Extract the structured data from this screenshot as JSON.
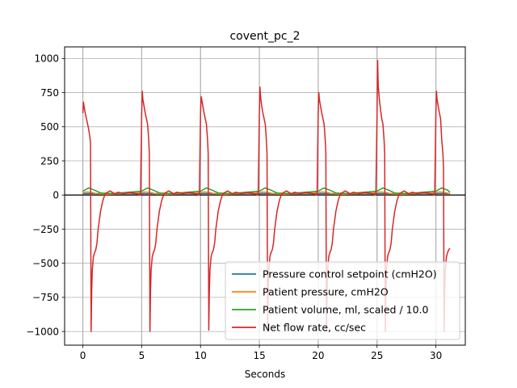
{
  "chart_data": {
    "type": "line",
    "title": "covent_pc_2",
    "xlabel": "Seconds",
    "ylabel": "",
    "xlim": [
      -1.55,
      32.5
    ],
    "ylim": [
      -1100,
      1085
    ],
    "xticks": [
      0,
      5,
      10,
      15,
      20,
      25,
      30
    ],
    "yticks": [
      -1000,
      -750,
      -500,
      -250,
      0,
      250,
      500,
      750,
      1000
    ],
    "xtick_labels": [
      "0",
      "5",
      "10",
      "15",
      "20",
      "25",
      "30"
    ],
    "ytick_labels": [
      "−1000",
      "−750",
      "−500",
      "−250",
      "0",
      "250",
      "500",
      "750",
      "1000"
    ],
    "grid": true,
    "zero_line": true,
    "legend_position": "lower-right",
    "breath_starts": [
      0.0,
      5.0,
      10.0,
      15.0,
      20.0,
      25.0,
      30.0
    ],
    "series": [
      {
        "name": "Pressure control setpoint (cmH2O)",
        "color": "#1f77b4",
        "x": [
          0,
          31.2
        ],
        "y": [
          10,
          10
        ]
      },
      {
        "name": "Patient pressure, cmH2O",
        "color": "#ff7f0e",
        "x": [
          0,
          0.3,
          0.8,
          1.2,
          2.2,
          5.0,
          5.3,
          5.8,
          6.2,
          7.2,
          10.0,
          10.3,
          10.8,
          11.2,
          12.2,
          15.0,
          15.3,
          15.8,
          16.2,
          17.2,
          20.0,
          20.3,
          20.8,
          21.2,
          22.2,
          25.0,
          25.3,
          25.8,
          26.2,
          27.2,
          30.0,
          30.3,
          30.8,
          31.2
        ],
        "y": [
          18,
          22,
          18,
          8,
          5,
          18,
          22,
          18,
          8,
          5,
          18,
          22,
          18,
          8,
          5,
          18,
          22,
          18,
          8,
          5,
          18,
          22,
          18,
          8,
          5,
          18,
          22,
          18,
          8,
          5,
          18,
          22,
          18,
          8
        ]
      },
      {
        "name": "Patient volume, ml, scaled / 10.0",
        "color": "#2ca02c",
        "x": [
          0,
          0.5,
          1.0,
          1.5,
          2.5,
          5.0,
          5.5,
          6.0,
          6.5,
          7.5,
          10.0,
          10.5,
          11.0,
          11.5,
          12.5,
          15.0,
          15.5,
          16.0,
          16.5,
          17.5,
          20.0,
          20.5,
          21.0,
          21.5,
          22.5,
          25.0,
          25.5,
          26.0,
          26.5,
          27.5,
          30.0,
          30.5,
          31.0,
          31.2
        ],
        "y": [
          28,
          52,
          35,
          15,
          10,
          28,
          52,
          35,
          15,
          10,
          28,
          52,
          35,
          15,
          10,
          28,
          52,
          35,
          15,
          10,
          28,
          52,
          35,
          15,
          10,
          28,
          52,
          35,
          15,
          10,
          28,
          52,
          35,
          20
        ]
      },
      {
        "name": "Net flow rate, cc/sec",
        "color": "#d62728",
        "x": [
          0.0,
          0.05,
          0.1,
          0.2,
          0.3,
          0.4,
          0.5,
          0.6,
          0.65,
          0.7,
          0.75,
          0.8,
          0.85,
          0.9,
          1.0,
          1.1,
          1.2,
          1.3,
          1.5,
          1.7,
          1.9,
          2.1,
          2.3,
          2.5,
          2.7,
          3.0,
          3.5,
          4.0,
          4.5,
          4.9,
          5.0,
          5.05,
          5.1,
          5.2,
          5.3,
          5.4,
          5.5,
          5.6,
          5.65,
          5.7,
          5.75,
          5.8,
          5.85,
          5.9,
          6.0,
          6.1,
          6.2,
          6.3,
          6.5,
          6.7,
          6.9,
          7.1,
          7.3,
          7.5,
          7.7,
          8.0,
          8.5,
          9.0,
          9.5,
          9.9,
          10.0,
          10.05,
          10.1,
          10.2,
          10.3,
          10.4,
          10.5,
          10.6,
          10.65,
          10.7,
          10.75,
          10.8,
          10.85,
          10.9,
          11.0,
          11.1,
          11.2,
          11.3,
          11.5,
          11.7,
          11.9,
          12.1,
          12.3,
          12.5,
          12.7,
          13.0,
          13.5,
          14.0,
          14.5,
          14.9,
          15.0,
          15.05,
          15.1,
          15.2,
          15.3,
          15.4,
          15.5,
          15.6,
          15.65,
          15.7,
          15.75,
          15.8,
          15.85,
          15.9,
          16.0,
          16.1,
          16.2,
          16.3,
          16.5,
          16.7,
          16.9,
          17.1,
          17.3,
          17.5,
          17.7,
          18.0,
          18.5,
          19.0,
          19.5,
          19.9,
          20.0,
          20.05,
          20.1,
          20.2,
          20.3,
          20.4,
          20.5,
          20.6,
          20.65,
          20.7,
          20.75,
          20.8,
          20.85,
          20.9,
          21.0,
          21.1,
          21.2,
          21.3,
          21.5,
          21.7,
          21.9,
          22.1,
          22.3,
          22.5,
          22.7,
          23.0,
          23.5,
          24.0,
          24.5,
          24.9,
          25.0,
          25.05,
          25.1,
          25.2,
          25.3,
          25.4,
          25.5,
          25.6,
          25.65,
          25.7,
          25.75,
          25.8,
          25.85,
          25.9,
          26.0,
          26.1,
          26.2,
          26.3,
          26.5,
          26.7,
          26.9,
          27.1,
          27.3,
          27.5,
          27.7,
          28.0,
          28.5,
          29.0,
          29.5,
          29.9,
          30.0,
          30.05,
          30.1,
          30.2,
          30.3,
          30.4,
          30.5,
          30.6,
          30.65,
          30.7,
          30.75,
          30.8,
          30.85,
          30.9,
          31.0,
          31.1,
          31.2
        ],
        "y": [
          600,
          680,
          650,
          600,
          560,
          520,
          480,
          420,
          380,
          -1000,
          -700,
          -550,
          -500,
          -450,
          -420,
          -400,
          -350,
          -250,
          -120,
          -40,
          10,
          20,
          30,
          20,
          10,
          20,
          10,
          20,
          10,
          0,
          600,
          760,
          700,
          650,
          600,
          560,
          520,
          400,
          300,
          -1000,
          -700,
          -550,
          -500,
          -450,
          -420,
          -400,
          -350,
          -250,
          -120,
          -40,
          10,
          20,
          30,
          20,
          10,
          20,
          10,
          20,
          10,
          0,
          600,
          720,
          700,
          650,
          600,
          560,
          520,
          400,
          300,
          -990,
          -700,
          -550,
          -500,
          -450,
          -420,
          -400,
          -350,
          -250,
          -120,
          -40,
          10,
          20,
          30,
          20,
          10,
          20,
          10,
          20,
          10,
          0,
          600,
          790,
          720,
          650,
          600,
          560,
          520,
          400,
          300,
          -1000,
          -700,
          -550,
          -500,
          -450,
          -420,
          -400,
          -350,
          -250,
          -120,
          -40,
          10,
          20,
          30,
          20,
          10,
          20,
          10,
          20,
          10,
          0,
          600,
          750,
          700,
          650,
          600,
          560,
          520,
          400,
          300,
          -1000,
          -700,
          -550,
          -500,
          -450,
          -420,
          -400,
          -350,
          -250,
          -120,
          -40,
          10,
          20,
          30,
          20,
          10,
          20,
          10,
          20,
          10,
          0,
          600,
          985,
          800,
          700,
          620,
          560,
          520,
          400,
          300,
          -1000,
          -700,
          -550,
          -500,
          -450,
          -420,
          -400,
          -350,
          -250,
          -120,
          -40,
          10,
          20,
          30,
          20,
          10,
          20,
          10,
          20,
          10,
          0,
          600,
          760,
          700,
          650,
          600,
          560,
          400,
          300,
          200,
          -1000,
          -700,
          -550,
          -500,
          -450,
          -420,
          -400,
          -390
        ]
      }
    ]
  }
}
